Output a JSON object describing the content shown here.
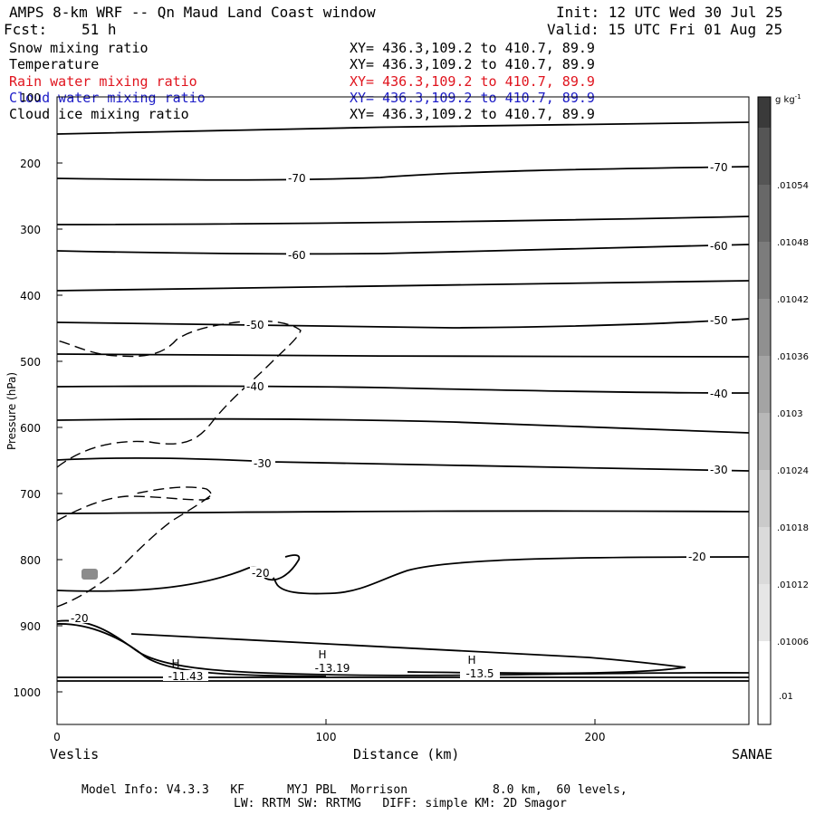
{
  "header": {
    "title": "AMPS 8-km WRF -- Qn Maud Land Coast window",
    "init": "Init: 12 UTC Wed 30 Jul 25",
    "fcst_label": "Fcst:",
    "fcst_value": "51 h",
    "valid": "Valid: 15 UTC Fri 01 Aug 25"
  },
  "fields": [
    {
      "name": "Snow mixing ratio",
      "xy": "XY= 436.3,109.2 to 410.7, 89.9",
      "color": "#000000"
    },
    {
      "name": "Temperature",
      "xy": "XY= 436.3,109.2 to 410.7, 89.9",
      "color": "#000000"
    },
    {
      "name": "Rain water mixing ratio",
      "xy": "XY= 436.3,109.2 to 410.7, 89.9",
      "color": "#e0141e"
    },
    {
      "name": "Cloud water mixing ratio",
      "xy": "XY= 436.3,109.2 to 410.7, 89.9",
      "color": "#1d1dc8"
    },
    {
      "name": "Cloud ice mixing ratio",
      "xy": "XY= 436.3,109.2 to 410.7, 89.9",
      "color": "#000000"
    }
  ],
  "footer": {
    "line1": "Model Info: V4.3.3   KF      MYJ PBL  Morrison            8.0 km,  60 levels,",
    "line2": "LW: RRTM SW: RRTMG   DIFF: simple KM: 2D Smagor"
  },
  "chart_data": {
    "type": "contour",
    "xlabel": "Distance (km)",
    "ylabel": "Pressure (hPa)",
    "x_left_label": "Veslis",
    "x_right_label": "SANAE",
    "xlim": [
      0,
      258
    ],
    "ylim": [
      1050,
      100
    ],
    "xticks": [
      0,
      100,
      200
    ],
    "yticks": [
      100,
      200,
      300,
      400,
      500,
      600,
      700,
      800,
      900,
      1000
    ],
    "colorbar": {
      "unit": "g kg",
      "unit_exp": "-1",
      "labels": [
        ".01054",
        ".01048",
        ".01042",
        ".01036",
        ".0103",
        ".01024",
        ".01018",
        ".01012",
        ".01006",
        ".01"
      ]
    },
    "temperature_labels": [
      {
        "label": "-70",
        "x": 90,
        "p": 222
      },
      {
        "label": "-70",
        "x": 248,
        "p": 205
      },
      {
        "label": "-60",
        "x": 90,
        "p": 338
      },
      {
        "label": "-60",
        "x": 248,
        "p": 320
      },
      {
        "label": "-50",
        "x": 75,
        "p": 448
      },
      {
        "label": "-50",
        "x": 248,
        "p": 442
      },
      {
        "label": "-40",
        "x": 75,
        "p": 560
      },
      {
        "label": "-40",
        "x": 248,
        "p": 555
      },
      {
        "label": "-30",
        "x": 78,
        "p": 668
      },
      {
        "label": "-30",
        "x": 248,
        "p": 673
      },
      {
        "label": "-20",
        "x": 76,
        "p": 824
      },
      {
        "label": "-20",
        "x": 240,
        "p": 798
      },
      {
        "label": "-20",
        "x": 10,
        "p": 885
      }
    ],
    "highs": [
      {
        "mark": "H",
        "value": "-11.43",
        "x": 45,
        "p": 960
      },
      {
        "mark": "H",
        "value": "-13.19",
        "x": 100,
        "p": 952
      },
      {
        "mark": "H",
        "value": "-13.5",
        "x": 157,
        "p": 957
      }
    ]
  }
}
